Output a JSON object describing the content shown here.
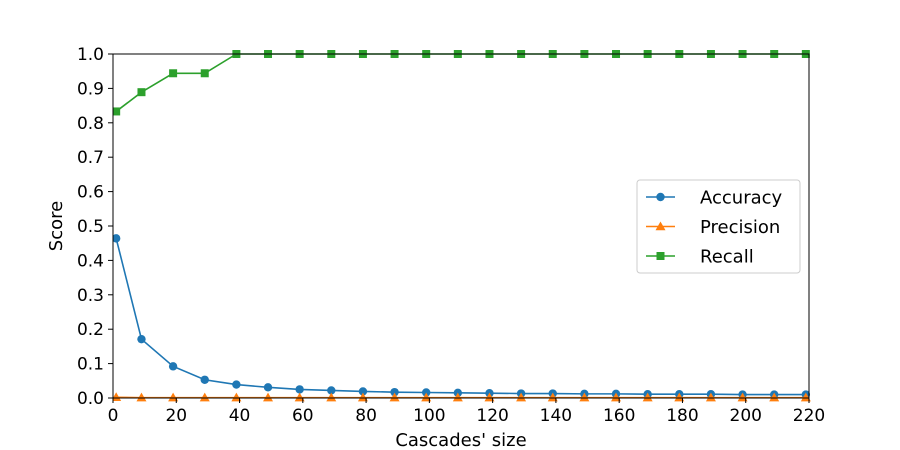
{
  "chart_data": {
    "type": "line",
    "xlabel": "Cascades' size",
    "ylabel": "Score",
    "xlim": [
      0,
      220
    ],
    "ylim": [
      0,
      1.0
    ],
    "xticks": [
      0,
      20,
      40,
      60,
      80,
      100,
      120,
      140,
      160,
      180,
      200,
      220
    ],
    "yticks": [
      0.0,
      0.1,
      0.2,
      0.3,
      0.4,
      0.5,
      0.6,
      0.7,
      0.8,
      0.9,
      1.0
    ],
    "ytick_labels": [
      "0.0",
      "0.1",
      "0.2",
      "0.3",
      "0.4",
      "0.5",
      "0.6",
      "0.7",
      "0.8",
      "0.9",
      "1.0"
    ],
    "grid": false,
    "legend_position": "center-right",
    "x": [
      1,
      9,
      19,
      29,
      39,
      49,
      59,
      69,
      79,
      89,
      99,
      109,
      119,
      129,
      139,
      149,
      159,
      169,
      179,
      189,
      199,
      209,
      219
    ],
    "series": [
      {
        "name": "Accuracy",
        "color": "#1f77b4",
        "marker": "circle",
        "values": [
          0.464,
          0.171,
          0.092,
          0.053,
          0.039,
          0.031,
          0.025,
          0.022,
          0.019,
          0.017,
          0.016,
          0.015,
          0.014,
          0.013,
          0.013,
          0.012,
          0.012,
          0.011,
          0.011,
          0.011,
          0.01,
          0.01,
          0.01
        ]
      },
      {
        "name": "Precision",
        "color": "#ff7f0e",
        "marker": "triangle",
        "values": [
          0.002,
          0.001,
          0.001,
          0.001,
          0.001,
          0.001,
          0.001,
          0.001,
          0.001,
          0.001,
          0.001,
          0.001,
          0.001,
          0.001,
          0.001,
          0.001,
          0.001,
          0.001,
          0.001,
          0.001,
          0.001,
          0.001,
          0.001
        ]
      },
      {
        "name": "Recall",
        "color": "#2ca02c",
        "marker": "square",
        "values": [
          0.833,
          0.889,
          0.944,
          0.944,
          1.0,
          1.0,
          1.0,
          1.0,
          1.0,
          1.0,
          1.0,
          1.0,
          1.0,
          1.0,
          1.0,
          1.0,
          1.0,
          1.0,
          1.0,
          1.0,
          1.0,
          1.0,
          1.0
        ]
      }
    ]
  }
}
